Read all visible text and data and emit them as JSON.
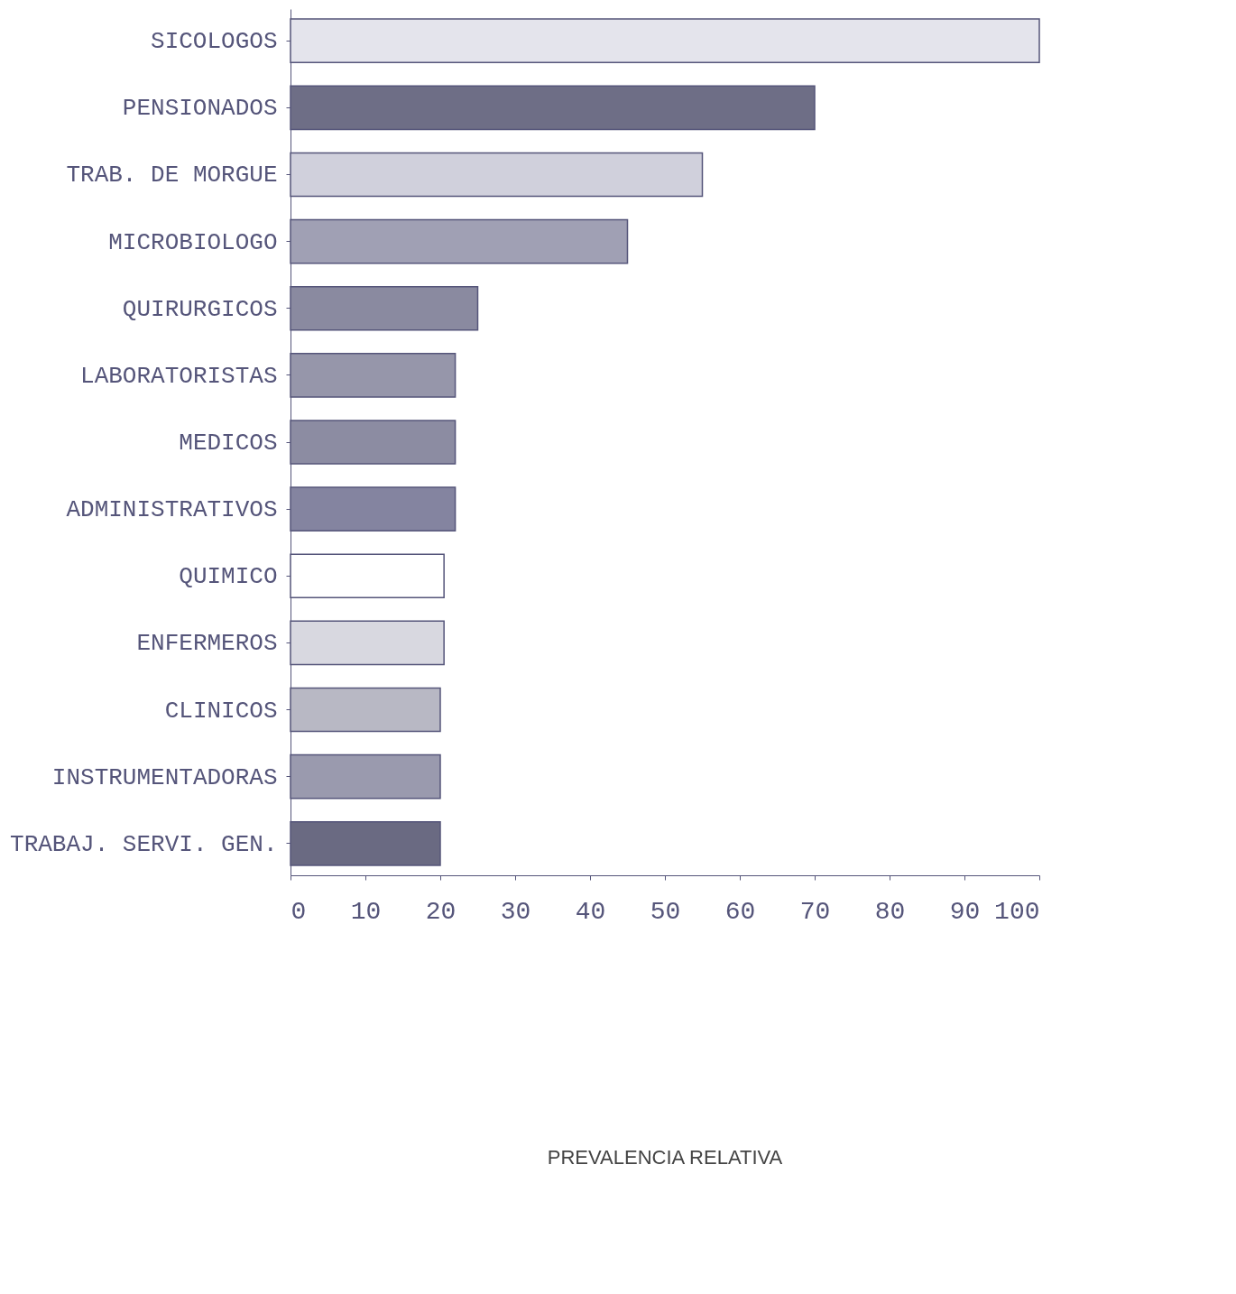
{
  "chart_data": {
    "type": "bar",
    "orientation": "horizontal",
    "annotations": [
      "PREVALENCIA RELATIVA"
    ],
    "categories": [
      "SICOLOGOS",
      "PENSIONADOS",
      "TRAB. DE MORGUE",
      "MICROBIOLOGO",
      "QUIRURGICOS",
      "LABORATORISTAS",
      "MEDICOS",
      "ADMINISTRATIVOS",
      "QUIMICO",
      "ENFERMEROS",
      "CLINICOS",
      "INSTRUMENTADORAS",
      "TRABAJ. SERVI. GEN."
    ],
    "values": [
      100,
      70,
      55,
      45,
      25,
      22,
      22,
      22,
      20.5,
      20.5,
      20,
      20,
      20
    ],
    "colors": [
      "#e4e4ec",
      "#6e6e86",
      "#d0d0dc",
      "#a0a0b4",
      "#8a8aa0",
      "#9696aa",
      "#8c8ca2",
      "#8484a0",
      "#ffffff",
      "#d8d8e0",
      "#b8b8c4",
      "#9a9aae",
      "#6a6a82"
    ],
    "xlim": [
      0,
      100
    ],
    "xticks": [
      0,
      10,
      20,
      30,
      40,
      50,
      60,
      70,
      80,
      90,
      100
    ],
    "grid": false
  }
}
